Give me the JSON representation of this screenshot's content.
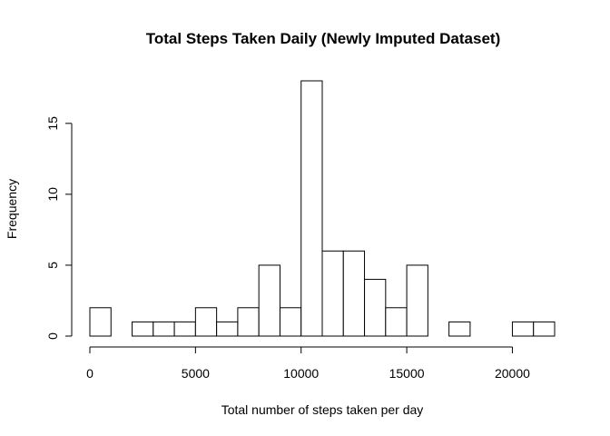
{
  "chart_data": {
    "type": "bar",
    "title": "Total Steps Taken Daily (Newly Imputed Dataset)",
    "xlabel": "Total number of steps taken per day",
    "ylabel": "Frequency",
    "bin_width": 1000,
    "bin_starts": [
      0,
      1000,
      2000,
      3000,
      4000,
      5000,
      6000,
      7000,
      8000,
      9000,
      10000,
      11000,
      12000,
      13000,
      14000,
      15000,
      16000,
      17000,
      18000,
      19000,
      20000,
      21000
    ],
    "values": [
      2,
      0,
      1,
      1,
      1,
      2,
      1,
      2,
      5,
      2,
      18,
      6,
      6,
      4,
      2,
      5,
      0,
      1,
      0,
      0,
      1,
      1
    ],
    "xlim": [
      0,
      22000
    ],
    "ylim": [
      0,
      18
    ],
    "x_ticks": [
      0,
      5000,
      10000,
      15000,
      20000
    ],
    "x_tick_labels": [
      "0",
      "5000",
      "10000",
      "15000",
      "20000"
    ],
    "y_ticks": [
      0,
      5,
      10,
      15
    ],
    "y_tick_labels": [
      "0",
      "5",
      "10",
      "15"
    ],
    "grid": false,
    "legend": "none"
  }
}
